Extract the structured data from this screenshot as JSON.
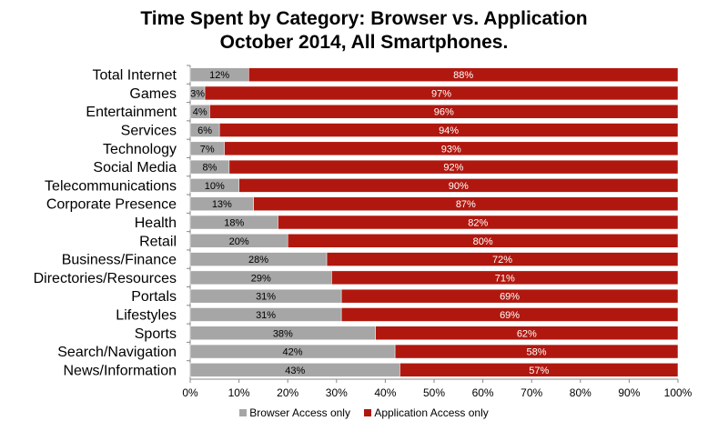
{
  "chart_data": {
    "type": "bar",
    "orientation": "horizontal",
    "stacked": true,
    "title_line1": "Time Spent by Category: Browser vs. Application",
    "title_line2": "October 2014, All Smartphones.",
    "categories": [
      "Total Internet",
      "Games",
      "Entertainment",
      "Services",
      "Technology",
      "Social Media",
      "Telecommunications",
      "Corporate Presence",
      "Health",
      "Retail",
      "Business/Finance",
      "Directories/Resources",
      "Portals",
      "Lifestyles",
      "Sports",
      "Search/Navigation",
      "News/Information"
    ],
    "series": [
      {
        "name": "Browser Access only",
        "color": "#a6a6a6",
        "values": [
          12,
          3,
          4,
          6,
          7,
          8,
          10,
          13,
          18,
          20,
          28,
          29,
          31,
          31,
          38,
          42,
          43
        ]
      },
      {
        "name": "Application Access only",
        "color": "#b0180f",
        "values": [
          88,
          97,
          96,
          94,
          93,
          92,
          90,
          87,
          82,
          80,
          72,
          71,
          69,
          69,
          62,
          58,
          57
        ]
      }
    ],
    "xlim": [
      0,
      100
    ],
    "xticks": [
      0,
      10,
      20,
      30,
      40,
      50,
      60,
      70,
      80,
      90,
      100
    ],
    "tick_suffix": "%",
    "legend_position": "bottom"
  }
}
